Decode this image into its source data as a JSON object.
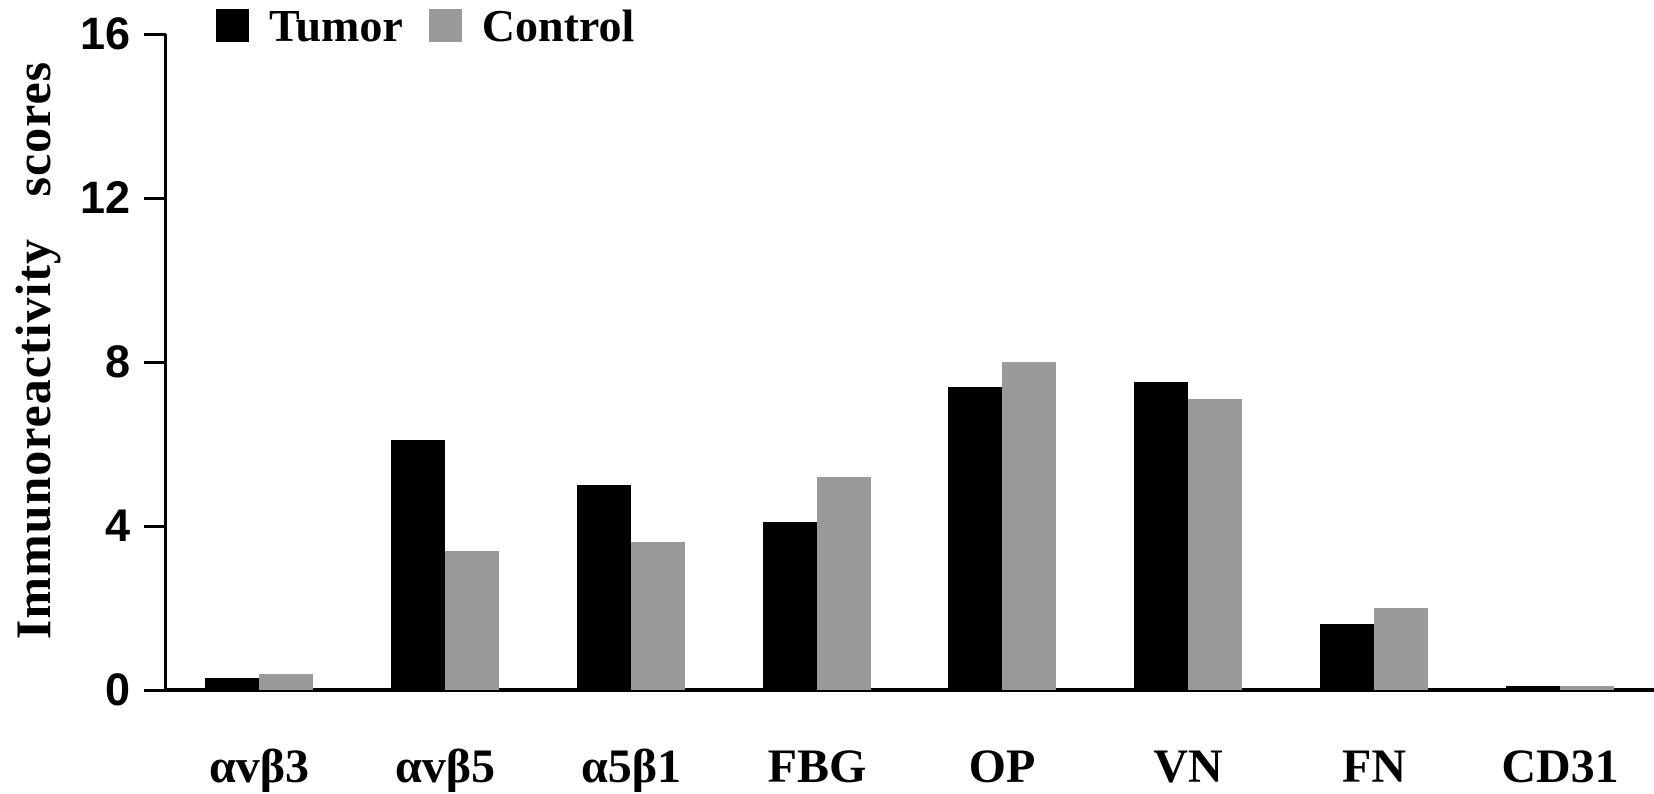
{
  "chart_data": {
    "type": "bar",
    "title": "",
    "ylabel": "Immunoreactivity scores",
    "xlabel": "",
    "categories": [
      "αvβ3",
      "αvβ5",
      "α5β1",
      "FBG",
      "OP",
      "VN",
      "FN",
      "CD31"
    ],
    "series": [
      {
        "name": "Tumor",
        "color": "#000000",
        "values": [
          0.3,
          6.1,
          5.0,
          4.1,
          7.4,
          7.5,
          1.6,
          0.1
        ]
      },
      {
        "name": "Control",
        "color": "#999999",
        "values": [
          0.4,
          3.4,
          3.6,
          5.2,
          8.0,
          7.1,
          2.0,
          0.1
        ]
      }
    ],
    "ylim": [
      0,
      16
    ],
    "yticks": [
      0,
      4,
      8,
      12,
      16
    ],
    "grid": false,
    "legend_position": "top-left",
    "colors": {
      "axis": "#000000",
      "background": "#ffffff"
    }
  }
}
